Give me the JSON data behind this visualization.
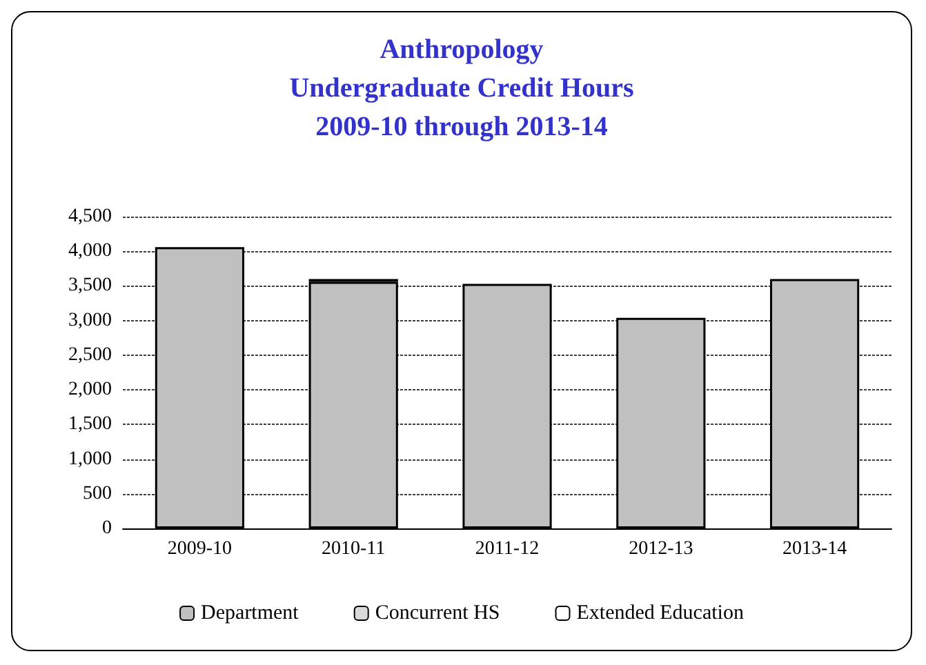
{
  "chart_data": {
    "type": "bar",
    "title": "Anthropology\nUndergraduate Credit Hours\n2009-10 through 2013-14",
    "categories": [
      "2009-10",
      "2010-11",
      "2011-12",
      "2012-13",
      "2013-14"
    ],
    "series": [
      {
        "name": "Department",
        "color": "#c0c0c0",
        "values": [
          4060,
          3560,
          3530,
          3040,
          3600
        ]
      },
      {
        "name": "Concurrent HS",
        "color": "#d9d9d9",
        "values": [
          0,
          40,
          0,
          0,
          0
        ]
      },
      {
        "name": "Extended Education",
        "color": "#ffffff",
        "values": [
          0,
          0,
          0,
          0,
          0
        ]
      }
    ],
    "stacked": true,
    "ylim": [
      0,
      4500
    ],
    "yticks": [
      0,
      500,
      {
        "value": 1000,
        "label": "1,000"
      },
      {
        "value": 1500,
        "label": "1,500"
      },
      {
        "value": 2000,
        "label": "2,000"
      },
      {
        "value": 2500,
        "label": "2,500"
      },
      {
        "value": 3000,
        "label": "3,000"
      },
      {
        "value": 3500,
        "label": "3,500"
      },
      {
        "value": 4000,
        "label": "4,000"
      },
      {
        "value": 4500,
        "label": "4,500"
      }
    ],
    "grid": "y",
    "legend": "bottom"
  }
}
